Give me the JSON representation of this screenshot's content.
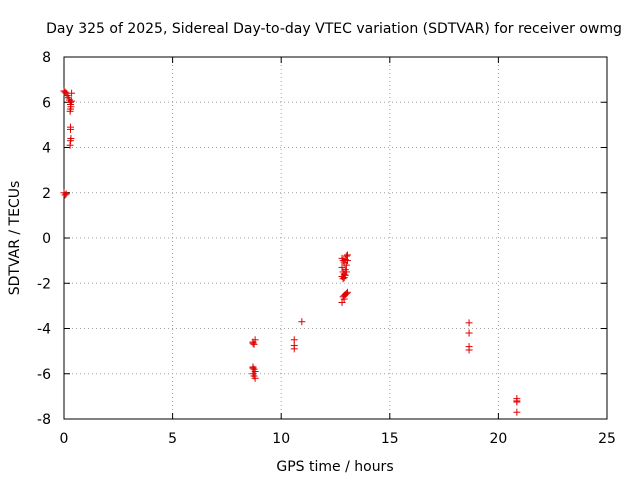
{
  "chart_data": {
    "type": "scatter",
    "title": "Day 325 of 2025, Sidereal Day-to-day VTEC variation (SDTVAR) for receiver owmg",
    "xlabel": "GPS time / hours",
    "ylabel": "SDTVAR / TECUs",
    "xlim": [
      0,
      25
    ],
    "ylim": [
      -8,
      8
    ],
    "xticks": [
      0,
      5,
      10,
      15,
      20,
      25
    ],
    "yticks": [
      -8,
      -6,
      -4,
      -2,
      0,
      2,
      4,
      6,
      8
    ],
    "xtick_labels": [
      "0",
      "5",
      "10",
      "15",
      "20",
      "25"
    ],
    "ytick_labels": [
      "-8",
      "-6",
      "-4",
      "-2",
      "0",
      "2",
      "4",
      "6",
      "8"
    ],
    "grid": true,
    "marker": "+",
    "marker_color": "#e00000",
    "series": [
      {
        "name": "SDTVAR",
        "points": [
          [
            0.0,
            6.5
          ],
          [
            0.05,
            6.45
          ],
          [
            0.1,
            6.4
          ],
          [
            0.15,
            6.3
          ],
          [
            0.2,
            6.2
          ],
          [
            0.25,
            6.1
          ],
          [
            0.3,
            6.0
          ],
          [
            0.3,
            5.9
          ],
          [
            0.3,
            5.7
          ],
          [
            0.35,
            6.4
          ],
          [
            0.35,
            6.05
          ],
          [
            0.32,
            5.8
          ],
          [
            0.28,
            5.6
          ],
          [
            0.3,
            4.9
          ],
          [
            0.3,
            4.8
          ],
          [
            0.32,
            4.4
          ],
          [
            0.3,
            4.3
          ],
          [
            0.28,
            4.1
          ],
          [
            0.0,
            2.0
          ],
          [
            0.05,
            1.9
          ],
          [
            0.1,
            1.95
          ],
          [
            8.7,
            -4.6
          ],
          [
            8.75,
            -4.7
          ],
          [
            8.8,
            -4.5
          ],
          [
            8.7,
            -4.65
          ],
          [
            8.7,
            -5.7
          ],
          [
            8.75,
            -5.8
          ],
          [
            8.8,
            -5.9
          ],
          [
            8.7,
            -6.0
          ],
          [
            8.75,
            -6.1
          ],
          [
            8.8,
            -6.2
          ],
          [
            8.7,
            -5.75
          ],
          [
            10.6,
            -4.5
          ],
          [
            10.6,
            -4.75
          ],
          [
            10.6,
            -4.9
          ],
          [
            10.95,
            -3.7
          ],
          [
            12.8,
            -0.9
          ],
          [
            12.85,
            -1.0
          ],
          [
            12.9,
            -1.1
          ],
          [
            12.95,
            -0.95
          ],
          [
            13.0,
            -0.8
          ],
          [
            13.05,
            -0.75
          ],
          [
            12.8,
            -1.3
          ],
          [
            12.85,
            -1.5
          ],
          [
            12.9,
            -1.6
          ],
          [
            12.95,
            -1.4
          ],
          [
            13.0,
            -1.2
          ],
          [
            13.05,
            -1.0
          ],
          [
            12.8,
            -1.7
          ],
          [
            12.85,
            -1.8
          ],
          [
            12.9,
            -1.75
          ],
          [
            12.95,
            -1.65
          ],
          [
            13.0,
            -1.5
          ],
          [
            12.85,
            -2.6
          ],
          [
            12.9,
            -2.7
          ],
          [
            12.95,
            -2.5
          ],
          [
            13.0,
            -2.45
          ],
          [
            13.05,
            -2.4
          ],
          [
            12.8,
            -2.85
          ],
          [
            12.9,
            -2.55
          ],
          [
            18.65,
            -3.75
          ],
          [
            18.65,
            -4.2
          ],
          [
            18.65,
            -4.8
          ],
          [
            18.65,
            -4.95
          ],
          [
            20.85,
            -7.1
          ],
          [
            20.85,
            -7.2
          ],
          [
            20.85,
            -7.25
          ],
          [
            20.85,
            -7.7
          ]
        ]
      }
    ]
  }
}
